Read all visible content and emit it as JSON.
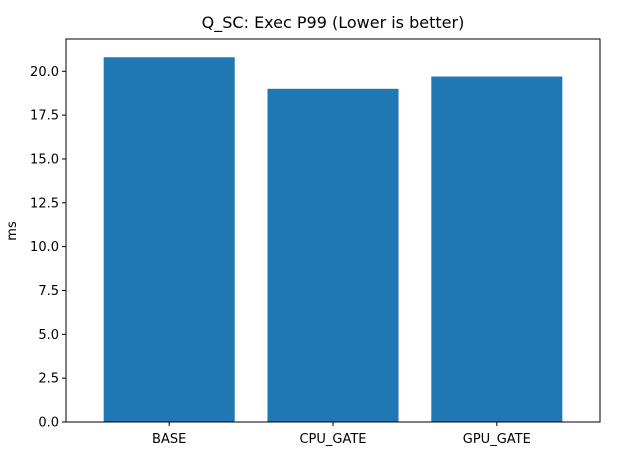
{
  "chart_data": {
    "type": "bar",
    "title": "Q_SC: Exec P99 (Lower is better)",
    "xlabel": "",
    "ylabel": "ms",
    "categories": [
      "BASE",
      "CPU_GATE",
      "GPU_GATE"
    ],
    "values": [
      20.8,
      19.0,
      19.7
    ],
    "ylim": [
      0,
      21.84
    ],
    "yticks": [
      "0.0",
      "2.5",
      "5.0",
      "7.5",
      "10.0",
      "12.5",
      "15.0",
      "17.5",
      "20.0"
    ],
    "bar_color": "#1f77b4",
    "grid": false,
    "legend": "none"
  }
}
